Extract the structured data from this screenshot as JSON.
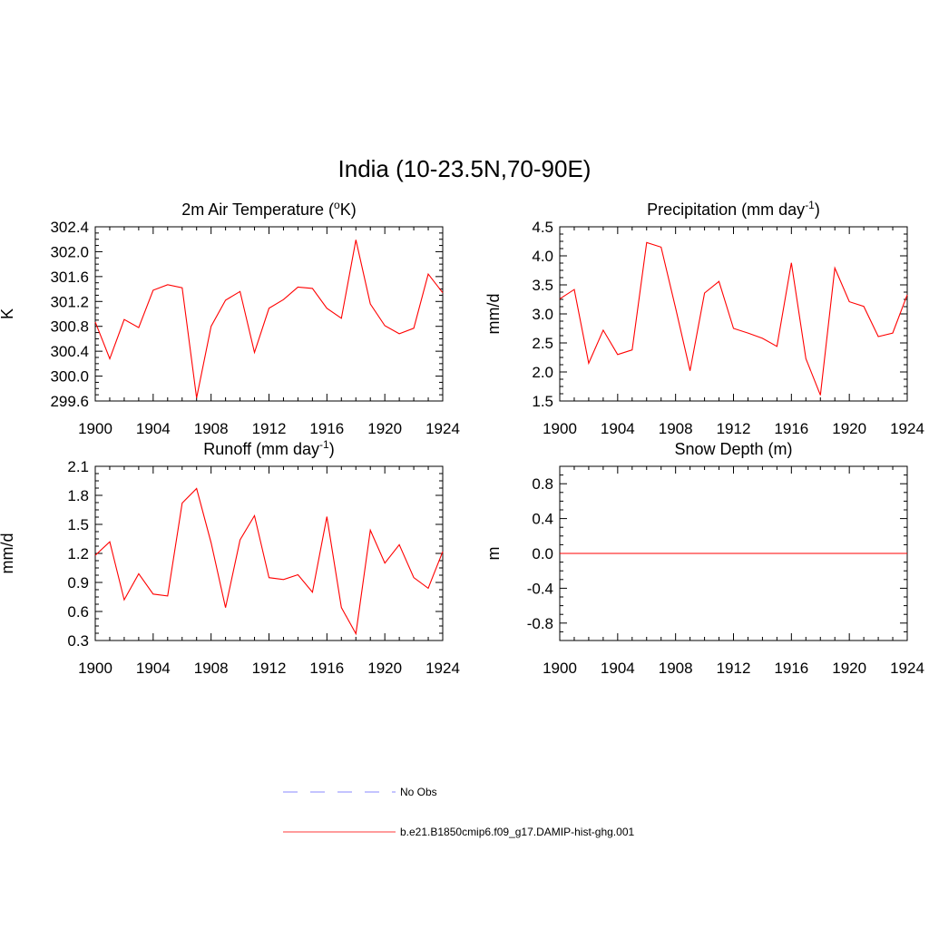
{
  "figure": {
    "title": "India (10-23.5N,70-90E)"
  },
  "chart_data": [
    {
      "type": "line",
      "title": "2m Air Temperature (°K)",
      "title_parts": [
        "2m Air Temperature (",
        "o",
        "K)"
      ],
      "xlabel": "",
      "ylabel": "K",
      "xlim": [
        1900,
        1924
      ],
      "ylim": [
        299.6,
        302.4
      ],
      "xticks": [
        "1900",
        "1904",
        "1908",
        "1912",
        "1916",
        "1920",
        "1924"
      ],
      "yticks": [
        "299.6",
        "300.0",
        "300.4",
        "300.8",
        "301.2",
        "301.6",
        "302.0",
        "302.4"
      ],
      "grid": false,
      "series": [
        {
          "color": "#ff0000",
          "x": [
            1900,
            1901,
            1902,
            1903,
            1904,
            1905,
            1906,
            1907,
            1908,
            1909,
            1910,
            1911,
            1912,
            1913,
            1914,
            1915,
            1916,
            1917,
            1918,
            1919,
            1920,
            1921,
            1922,
            1923,
            1924
          ],
          "y": [
            300.87,
            300.28,
            300.91,
            300.78,
            301.38,
            301.47,
            301.42,
            299.65,
            300.8,
            301.22,
            301.36,
            300.38,
            301.09,
            301.23,
            301.43,
            301.41,
            301.09,
            300.93,
            302.19,
            301.16,
            300.81,
            300.68,
            300.77,
            301.64,
            301.34
          ]
        }
      ]
    },
    {
      "type": "line",
      "title": "Precipitation (mm day-1)",
      "title_parts": [
        "Precipitation (mm day",
        "-1",
        ")"
      ],
      "xlabel": "",
      "ylabel": "mm/d",
      "xlim": [
        1900,
        1924
      ],
      "ylim": [
        1.5,
        4.5
      ],
      "xticks": [
        "1900",
        "1904",
        "1908",
        "1912",
        "1916",
        "1920",
        "1924"
      ],
      "yticks": [
        "1.5",
        "2.0",
        "2.5",
        "3.0",
        "3.5",
        "4.0",
        "4.5"
      ],
      "grid": false,
      "series": [
        {
          "color": "#ff0000",
          "x": [
            1900,
            1901,
            1902,
            1903,
            1904,
            1905,
            1906,
            1907,
            1908,
            1909,
            1910,
            1911,
            1912,
            1913,
            1914,
            1915,
            1916,
            1917,
            1918,
            1919,
            1920,
            1921,
            1922,
            1923,
            1924
          ],
          "y": [
            3.26,
            3.42,
            2.15,
            2.72,
            2.3,
            2.38,
            4.23,
            4.15,
            3.1,
            2.02,
            3.36,
            3.56,
            2.75,
            2.67,
            2.58,
            2.44,
            3.88,
            2.23,
            1.6,
            3.79,
            3.21,
            3.13,
            2.61,
            2.67,
            3.33
          ]
        }
      ]
    },
    {
      "type": "line",
      "title": "Runoff (mm day-1)",
      "title_parts": [
        "Runoff (mm day",
        "-1",
        ")"
      ],
      "xlabel": "",
      "ylabel": "mm/d",
      "xlim": [
        1900,
        1924
      ],
      "ylim": [
        0.3,
        2.1
      ],
      "xticks": [
        "1900",
        "1904",
        "1908",
        "1912",
        "1916",
        "1920",
        "1924"
      ],
      "yticks": [
        "0.3",
        "0.6",
        "0.9",
        "1.2",
        "1.5",
        "1.8",
        "2.1"
      ],
      "grid": false,
      "series": [
        {
          "color": "#ff0000",
          "x": [
            1900,
            1901,
            1902,
            1903,
            1904,
            1905,
            1906,
            1907,
            1908,
            1909,
            1910,
            1911,
            1912,
            1913,
            1914,
            1915,
            1916,
            1917,
            1918,
            1919,
            1920,
            1921,
            1922,
            1923,
            1924
          ],
          "y": [
            1.18,
            1.32,
            0.72,
            0.99,
            0.78,
            0.76,
            1.72,
            1.87,
            1.31,
            0.64,
            1.34,
            1.59,
            0.95,
            0.93,
            0.98,
            0.8,
            1.58,
            0.64,
            0.37,
            1.44,
            1.1,
            1.29,
            0.95,
            0.84,
            1.22
          ]
        }
      ]
    },
    {
      "type": "line",
      "title": "Snow Depth (m)",
      "title_parts": [
        "Snow Depth (m)"
      ],
      "xlabel": "",
      "ylabel": "m",
      "xlim": [
        1900,
        1924
      ],
      "ylim": [
        -1.0,
        1.0
      ],
      "xticks": [
        "1900",
        "1904",
        "1908",
        "1912",
        "1916",
        "1920",
        "1924"
      ],
      "yticks": [
        "-0.8",
        "-0.4",
        "0.0",
        "0.4",
        "0.8"
      ],
      "grid": false,
      "series": [
        {
          "color": "#ff0000",
          "x": [
            1900,
            1924
          ],
          "y": [
            0,
            0
          ]
        }
      ]
    }
  ],
  "legend": {
    "placement": "bottom-center",
    "items": [
      {
        "label": "No Obs",
        "color": "#a0a0ff",
        "dashed": true
      },
      {
        "label": "b.e21.B1850cmip6.f09_g17.DAMIP-hist-ghg.001",
        "color": "#ff6060",
        "dashed": false
      }
    ]
  }
}
